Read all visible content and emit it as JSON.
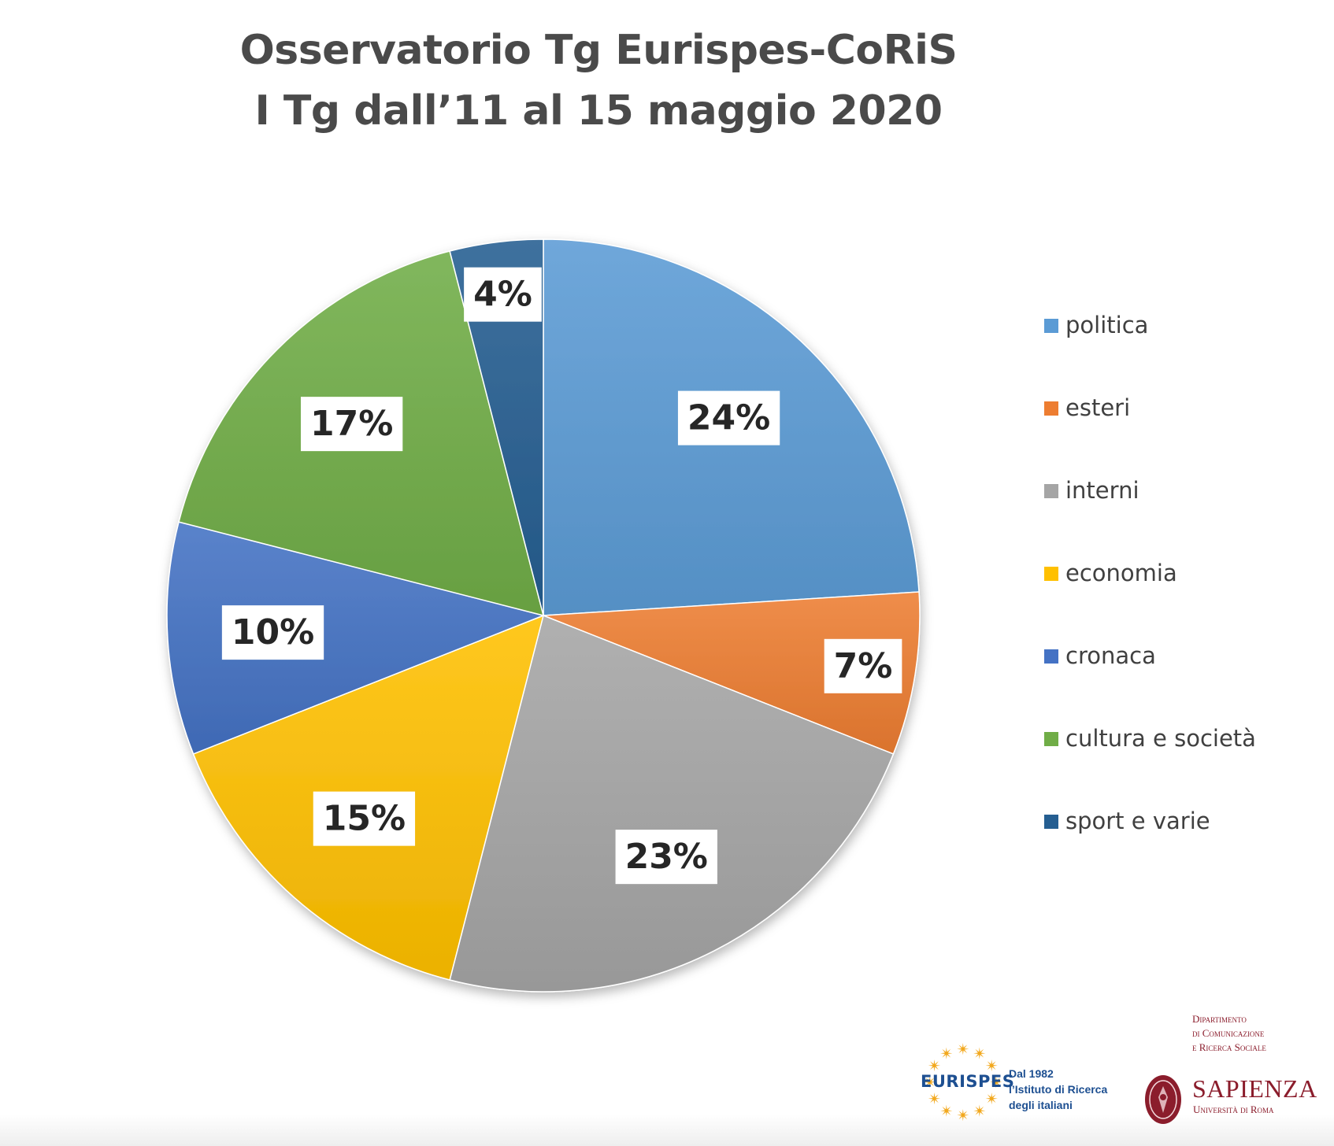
{
  "chart_data": {
    "type": "pie",
    "title": [
      "Osservatorio Tg Eurispes-CoRiS",
      "I Tg dall’11 al 15 maggio 2020"
    ],
    "slices": [
      {
        "name": "politica",
        "value": 24,
        "label": "24%",
        "color": "#5b9bd5"
      },
      {
        "name": "esteri",
        "value": 7,
        "label": "7%",
        "color": "#ed7d31"
      },
      {
        "name": "interni",
        "value": 23,
        "label": "23%",
        "color": "#a5a5a5"
      },
      {
        "name": "economia",
        "value": 15,
        "label": "15%",
        "color": "#ffc000"
      },
      {
        "name": "cronaca",
        "value": 10,
        "label": "10%",
        "color": "#4472c4"
      },
      {
        "name": "cultura e società",
        "value": 17,
        "label": "17%",
        "color": "#70ad47"
      },
      {
        "name": "sport e varie",
        "value": 4,
        "label": "4%",
        "color": "#255e91"
      }
    ],
    "start_angle": "12 o'clock",
    "direction": "clockwise",
    "legend_position": "right"
  },
  "logos": {
    "eurispes": {
      "name": "EURISPES",
      "tagline": [
        "Dal 1982",
        "l’Istituto di Ricerca",
        "degli italiani"
      ]
    },
    "sapienza": {
      "department": [
        "Dipartimento",
        "di Comunicazione",
        "e Ricerca Sociale"
      ],
      "name": "SAPIENZA",
      "subtitle": "Università di Roma"
    }
  }
}
